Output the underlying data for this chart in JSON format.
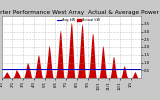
{
  "title": "Solar PV/Inverter Performance West Array  Actual & Average Power Output",
  "bg_color": "#c8c8c8",
  "plot_bg_color": "#ffffff",
  "bar_color": "#cc0000",
  "avg_line_color": "#0000cc",
  "avg_value": 0.55,
  "ylim": [
    0,
    4.0
  ],
  "ytick_vals": [
    0.5,
    1.0,
    1.5,
    2.0,
    2.5,
    3.0,
    3.5
  ],
  "ytick_labels": [
    "0.5",
    "1.0",
    "1.5",
    "2.0",
    "2.5",
    "3.0",
    "3.5"
  ],
  "title_fontsize": 4.2,
  "tick_fontsize": 2.8,
  "grid_color": "#999999",
  "legend_avg_label": "Avg kW",
  "legend_actual_label": "Actual kW",
  "data": [
    0.0,
    0.0,
    0.0,
    0.05,
    0.08,
    0.1,
    0.15,
    0.2,
    0.25,
    0.3,
    0.35,
    0.4,
    0.38,
    0.35,
    0.3,
    0.25,
    0.2,
    0.15,
    0.1,
    0.05,
    0.0,
    0.0,
    0.0,
    0.0,
    0.0,
    0.0,
    0.05,
    0.1,
    0.15,
    0.2,
    0.3,
    0.4,
    0.5,
    0.55,
    0.5,
    0.45,
    0.4,
    0.35,
    0.3,
    0.25,
    0.2,
    0.1,
    0.05,
    0.0,
    0.0,
    0.0,
    0.0,
    0.0,
    0.0,
    0.0,
    0.05,
    0.15,
    0.25,
    0.35,
    0.5,
    0.65,
    0.8,
    0.95,
    1.0,
    0.95,
    0.85,
    0.75,
    0.65,
    0.55,
    0.4,
    0.3,
    0.15,
    0.05,
    0.0,
    0.0,
    0.0,
    0.0,
    0.0,
    0.0,
    0.1,
    0.2,
    0.4,
    0.6,
    0.8,
    1.0,
    1.2,
    1.4,
    1.5,
    1.45,
    1.3,
    1.1,
    0.9,
    0.7,
    0.5,
    0.3,
    0.15,
    0.05,
    0.0,
    0.0,
    0.0,
    0.0,
    0.0,
    0.05,
    0.15,
    0.3,
    0.55,
    0.8,
    1.1,
    1.4,
    1.7,
    2.0,
    2.1,
    2.0,
    1.8,
    1.5,
    1.2,
    0.9,
    0.6,
    0.35,
    0.15,
    0.05,
    0.0,
    0.0,
    0.0,
    0.0,
    0.0,
    0.05,
    0.2,
    0.4,
    0.7,
    1.0,
    1.4,
    1.8,
    2.2,
    2.6,
    2.9,
    3.1,
    3.0,
    2.7,
    2.2,
    1.7,
    1.2,
    0.7,
    0.35,
    0.1,
    0.0,
    0.0,
    0.0,
    0.0,
    0.0,
    0.05,
    0.2,
    0.45,
    0.75,
    1.1,
    1.5,
    1.9,
    2.4,
    2.8,
    3.2,
    3.5,
    3.6,
    3.4,
    2.9,
    2.3,
    1.7,
    1.1,
    0.5,
    0.15,
    0.02,
    0.0,
    0.0,
    0.0,
    0.0,
    0.05,
    0.18,
    0.4,
    0.7,
    1.0,
    1.4,
    1.85,
    2.3,
    2.75,
    3.1,
    3.4,
    3.5,
    3.3,
    2.8,
    2.2,
    1.6,
    1.0,
    0.45,
    0.12,
    0.01,
    0.0,
    0.0,
    0.0,
    0.0,
    0.03,
    0.12,
    0.3,
    0.55,
    0.85,
    1.2,
    1.6,
    2.0,
    2.4,
    2.7,
    2.9,
    2.85,
    2.6,
    2.2,
    1.7,
    1.2,
    0.7,
    0.3,
    0.08,
    0.0,
    0.0,
    0.0,
    0.0,
    0.0,
    0.0,
    0.08,
    0.2,
    0.4,
    0.65,
    0.95,
    1.3,
    1.65,
    1.95,
    2.1,
    2.0,
    1.8,
    1.5,
    1.2,
    0.85,
    0.55,
    0.3,
    0.12,
    0.03,
    0.0,
    0.0,
    0.0,
    0.0,
    0.0,
    0.0,
    0.03,
    0.1,
    0.25,
    0.4,
    0.6,
    0.85,
    1.1,
    1.3,
    1.4,
    1.35,
    1.15,
    0.9,
    0.65,
    0.45,
    0.28,
    0.14,
    0.05,
    0.01,
    0.0,
    0.0,
    0.0,
    0.0,
    0.0,
    0.0,
    0.02,
    0.07,
    0.15,
    0.25,
    0.38,
    0.52,
    0.65,
    0.75,
    0.8,
    0.75,
    0.62,
    0.48,
    0.35,
    0.22,
    0.12,
    0.05,
    0.01,
    0.0,
    0.0,
    0.0,
    0.0,
    0.0,
    0.0,
    0.0,
    0.0,
    0.04,
    0.08,
    0.12,
    0.18,
    0.25,
    0.32,
    0.38,
    0.4,
    0.37,
    0.3,
    0.22,
    0.15,
    0.08,
    0.04,
    0.01,
    0.0,
    0.0,
    0.0,
    0.0,
    0.0,
    0.0
  ],
  "month_starts": [
    0,
    24,
    48,
    72,
    96,
    120,
    144,
    168,
    192,
    216,
    240,
    264,
    288
  ],
  "xlabels": [
    "1/1",
    "2/1",
    "3/1",
    "4/1",
    "5/1",
    "6/1",
    "7/1",
    "8/1",
    "9/1",
    "10/1",
    "11/1",
    "12/1",
    "1/1"
  ]
}
